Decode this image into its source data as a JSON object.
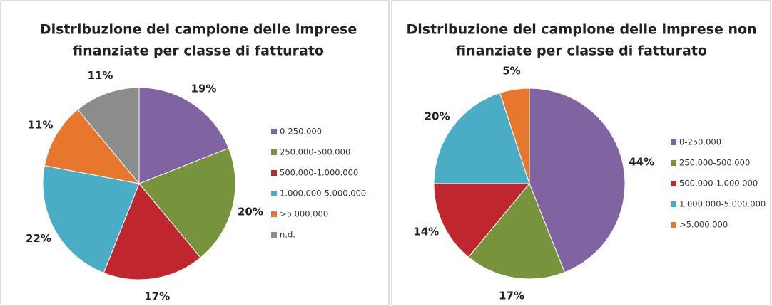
{
  "chart_data": [
    {
      "type": "pie",
      "title": [
        "Distribuzione del campione delle imprese",
        "finanziate per classe di fatturato"
      ],
      "categories": [
        "0-250.000",
        "250.000-500.000",
        "500.000-1.000.000",
        "1.000.000-5.000.000",
        ">5.000.000",
        "n.d."
      ],
      "values": [
        19,
        20,
        17,
        22,
        11,
        11
      ],
      "value_labels": [
        "19%",
        "20%",
        "17%",
        "22%",
        "11%",
        "11%"
      ],
      "colors": [
        "#8064a2",
        "#77933c",
        "#c0262d",
        "#4bacc6",
        "#e8772e",
        "#8c8c8c"
      ]
    },
    {
      "type": "pie",
      "title": [
        "Distribuzione del campione delle imprese non",
        "finanziate per classe di fatturato"
      ],
      "categories": [
        "0-250.000",
        "250.000-500.000",
        "500.000-1.000.000",
        "1.000.000-5.000.000",
        ">5.000.000"
      ],
      "values": [
        44,
        17,
        14,
        20,
        5
      ],
      "value_labels": [
        "44%",
        "17%",
        "14%",
        "20%",
        "5%"
      ],
      "colors": [
        "#8064a2",
        "#77933c",
        "#c0262d",
        "#4bacc6",
        "#e8772e"
      ]
    }
  ]
}
